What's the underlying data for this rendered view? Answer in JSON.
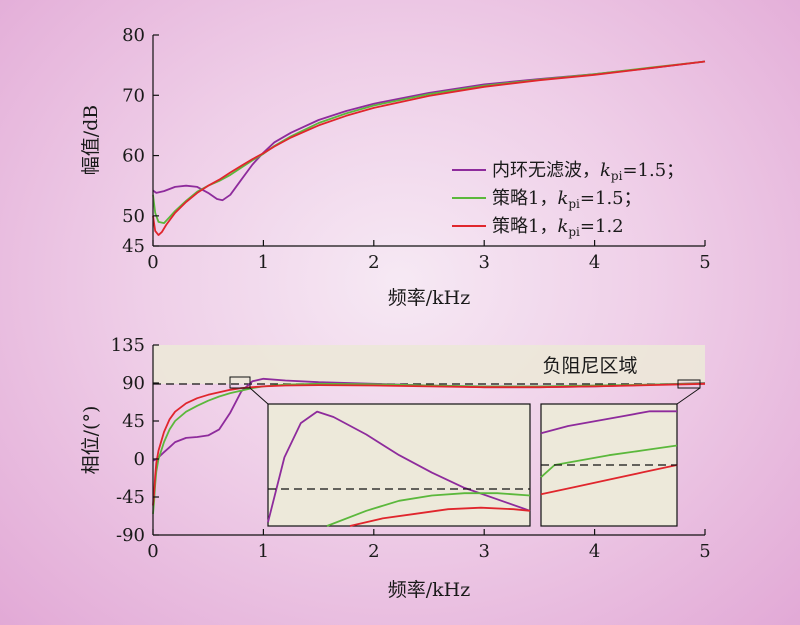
{
  "chart_data": [
    {
      "type": "line",
      "xlabel": "频率/kHz",
      "ylabel": "幅值/dB",
      "xlim": [
        0,
        5
      ],
      "ylim": [
        45,
        80
      ],
      "xticks": [
        "0",
        "1",
        "2",
        "3",
        "4",
        "5"
      ],
      "yticks": [
        "45",
        "50",
        "60",
        "70",
        "80"
      ],
      "legend": "right",
      "series": [
        {
          "name_main": "内环无滤波，",
          "name_k": "k",
          "name_sub": "pi",
          "name_val": "=1.5；",
          "color": "#8e2b9c",
          "x": [
            0,
            0.03,
            0.1,
            0.2,
            0.3,
            0.4,
            0.5,
            0.58,
            0.63,
            0.7,
            0.8,
            0.9,
            1.0,
            1.1,
            1.25,
            1.5,
            1.75,
            2.0,
            2.5,
            3.0,
            3.5,
            4.0,
            4.5,
            5.0
          ],
          "y": [
            54.2,
            53.8,
            54.1,
            54.8,
            55.0,
            54.8,
            53.8,
            52.8,
            52.6,
            53.5,
            56.0,
            58.5,
            60.5,
            62.2,
            63.8,
            65.9,
            67.4,
            68.6,
            70.4,
            71.8,
            72.7,
            73.5,
            74.5,
            75.6
          ]
        },
        {
          "name_main": "策略1，",
          "name_k": "k",
          "name_sub": "pi",
          "name_val": "=1.5；",
          "color": "#5bb83c",
          "x": [
            0,
            0.02,
            0.05,
            0.1,
            0.15,
            0.2,
            0.3,
            0.4,
            0.5,
            0.6,
            0.7,
            0.8,
            0.9,
            1.0,
            1.1,
            1.25,
            1.5,
            1.75,
            2.0,
            2.5,
            3.0,
            3.5,
            4.0,
            4.5,
            5.0
          ],
          "y": [
            53.5,
            50.5,
            49.0,
            48.8,
            49.8,
            50.8,
            52.5,
            54.0,
            55.0,
            55.8,
            56.8,
            58.0,
            59.2,
            60.3,
            61.6,
            63.2,
            65.4,
            67.0,
            68.3,
            70.2,
            71.6,
            72.6,
            73.5,
            74.6,
            75.6
          ]
        },
        {
          "name_main": "策略1，",
          "name_k": "k",
          "name_sub": "pi",
          "name_val": "=1.2",
          "color": "#e0262d",
          "x": [
            0,
            0.02,
            0.05,
            0.08,
            0.12,
            0.2,
            0.3,
            0.4,
            0.5,
            0.6,
            0.7,
            0.8,
            0.9,
            1.0,
            1.1,
            1.25,
            1.5,
            1.75,
            2.0,
            2.5,
            3.0,
            3.5,
            4.0,
            4.5,
            5.0
          ],
          "y": [
            50.0,
            47.5,
            46.8,
            47.3,
            48.5,
            50.5,
            52.3,
            53.8,
            55.0,
            56.0,
            57.2,
            58.3,
            59.4,
            60.4,
            61.5,
            63.0,
            65.0,
            66.6,
            67.9,
            69.9,
            71.4,
            72.5,
            73.4,
            74.5,
            75.6
          ]
        }
      ]
    },
    {
      "type": "line",
      "xlabel": "频率/kHz",
      "ylabel": "相位/(°)",
      "xlim": [
        0,
        5
      ],
      "ylim": [
        -90,
        135
      ],
      "xticks": [
        "0",
        "1",
        "2",
        "3",
        "4",
        "5"
      ],
      "yticks": [
        "-90",
        "-45",
        "0",
        "45",
        "90",
        "135"
      ],
      "annotation": "负阻尼区域",
      "shaded_region": [
        90,
        135
      ],
      "reference_line": 90,
      "series": [
        {
          "color": "#8e2b9c",
          "x": [
            0,
            0.02,
            0.05,
            0.1,
            0.15,
            0.2,
            0.3,
            0.4,
            0.5,
            0.6,
            0.7,
            0.8,
            0.9,
            1.0,
            1.2,
            1.5,
            2.0,
            2.5,
            3.0,
            3.5,
            4.0,
            4.5,
            5.0
          ],
          "y": [
            -2,
            -1,
            2,
            8,
            14,
            20,
            25,
            26,
            28,
            35,
            55,
            80,
            92,
            95,
            93,
            91,
            89,
            87,
            85,
            85,
            86,
            88,
            90
          ]
        },
        {
          "color": "#5bb83c",
          "x": [
            0,
            0.01,
            0.02,
            0.03,
            0.05,
            0.1,
            0.15,
            0.2,
            0.3,
            0.4,
            0.5,
            0.6,
            0.7,
            0.8,
            0.9,
            1.0,
            1.2,
            1.5,
            2.0,
            2.5,
            3.0,
            3.5,
            4.0,
            4.5,
            5.0
          ],
          "y": [
            -65,
            -50,
            -30,
            -15,
            0,
            20,
            35,
            45,
            56,
            63,
            69,
            74,
            78,
            81,
            84,
            86,
            88,
            89,
            88.5,
            87,
            86,
            86,
            87,
            88,
            89.5
          ]
        },
        {
          "color": "#e0262d",
          "x": [
            0,
            0.01,
            0.02,
            0.03,
            0.05,
            0.1,
            0.15,
            0.2,
            0.3,
            0.4,
            0.5,
            0.6,
            0.7,
            0.8,
            0.9,
            1.0,
            1.2,
            1.5,
            2.0,
            2.5,
            3.0,
            3.5,
            4.0,
            4.5,
            5.0
          ],
          "y": [
            -55,
            -40,
            -20,
            -5,
            10,
            32,
            47,
            56,
            66,
            72,
            76,
            79,
            82,
            84,
            85,
            86,
            87,
            87.5,
            87,
            86,
            85,
            85,
            86,
            87.5,
            89
          ]
        }
      ],
      "insets": [
        {
          "xlim": [
            0.8,
            1.6
          ],
          "ylim": [
            84,
            100
          ],
          "series": [
            {
              "color": "#8e2b9c",
              "x": [
                0.8,
                0.85,
                0.9,
                0.95,
                1.0,
                1.1,
                1.2,
                1.3,
                1.4,
                1.5,
                1.6
              ],
              "y": [
                84.5,
                93,
                97.5,
                99,
                98.3,
                96,
                93.3,
                91,
                89,
                87.5,
                86
              ]
            },
            {
              "color": "#5bb83c",
              "x": [
                0.98,
                1.1,
                1.2,
                1.3,
                1.4,
                1.5,
                1.6
              ],
              "y": [
                84,
                86,
                87.3,
                88,
                88.3,
                88.3,
                88
              ]
            },
            {
              "color": "#e0262d",
              "x": [
                1.05,
                1.15,
                1.25,
                1.35,
                1.45,
                1.55,
                1.6
              ],
              "y": [
                84,
                85,
                85.6,
                86.2,
                86.4,
                86.2,
                86
              ]
            }
          ]
        },
        {
          "xlim": [
            4.8,
            5.0
          ],
          "ylim": [
            87,
            92
          ],
          "series": [
            {
              "color": "#8e2b9c",
              "x": [
                4.8,
                4.84,
                4.88,
                4.92,
                4.96,
                5.0
              ],
              "y": [
                90.8,
                91.1,
                91.3,
                91.5,
                91.7,
                91.7
              ]
            },
            {
              "color": "#5bb83c",
              "x": [
                4.8,
                4.82,
                4.86,
                4.9,
                4.95,
                5.0
              ],
              "y": [
                89.0,
                89.5,
                89.7,
                89.9,
                90.1,
                90.3
              ]
            },
            {
              "color": "#e0262d",
              "x": [
                4.8,
                4.85,
                4.9,
                4.95,
                5.0
              ],
              "y": [
                88.3,
                88.6,
                88.9,
                89.2,
                89.5
              ]
            }
          ]
        }
      ]
    }
  ]
}
